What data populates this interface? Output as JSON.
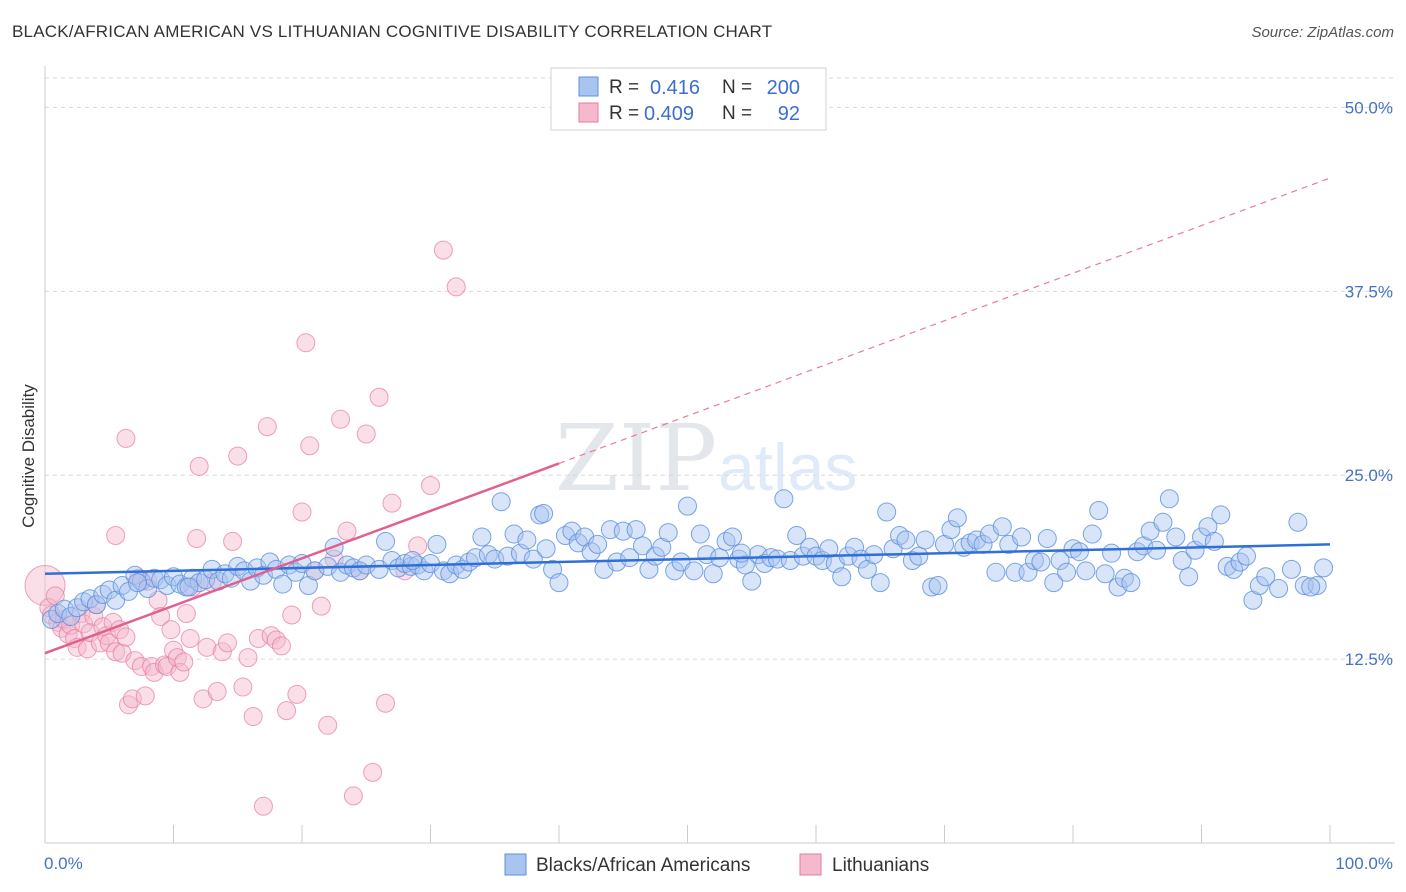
{
  "title": "BLACK/AFRICAN AMERICAN VS LITHUANIAN COGNITIVE DISABILITY CORRELATION CHART",
  "source": "Source: ZipAtlas.com",
  "watermark": {
    "zip": "ZIP",
    "atlas": "atlas"
  },
  "colors": {
    "blue": "#5b8fde",
    "blue_fill": "#a9c4ef",
    "pink": "#e77aa0",
    "pink_fill": "#f5b9cd",
    "axis_text": "#4472c4"
  },
  "legend": {
    "rows": [
      {
        "r_label": "R =",
        "r_value": "0.416",
        "n_label": "N =",
        "n_value": "200"
      },
      {
        "r_label": "R =",
        "r_value": "0.409",
        "n_label": "N =",
        "n_value": "92"
      }
    ]
  },
  "bottom_legend": [
    "Blacks/African Americans",
    "Lithuanians"
  ],
  "chart_data": {
    "type": "scatter",
    "title": "BLACK/AFRICAN AMERICAN VS LITHUANIAN COGNITIVE DISABILITY CORRELATION CHART",
    "xlabel": "",
    "ylabel": "Cognitive Disability",
    "xlim": [
      0,
      100
    ],
    "ylim": [
      0,
      52
    ],
    "x_tick_labels": [
      "0.0%",
      "100.0%"
    ],
    "y_ticks": [
      12.5,
      25.0,
      37.5,
      50.0
    ],
    "y_tick_labels": [
      "12.5%",
      "25.0%",
      "37.5%",
      "50.0%"
    ],
    "series": [
      {
        "name": "Blacks/African Americans",
        "r": 0.416,
        "n": 200,
        "trend": {
          "x": [
            0,
            100
          ],
          "y": [
            18.3,
            20.3
          ]
        },
        "points": [
          [
            0.5,
            15.2
          ],
          [
            1,
            15.6
          ],
          [
            1.5,
            15.9
          ],
          [
            2,
            15.4
          ],
          [
            2.5,
            16.0
          ],
          [
            3,
            16.4
          ],
          [
            3.5,
            16.6
          ],
          [
            4,
            16.2
          ],
          [
            4.5,
            16.9
          ],
          [
            5,
            17.2
          ],
          [
            5.5,
            16.5
          ],
          [
            6,
            17.5
          ],
          [
            6.5,
            17.1
          ],
          [
            7,
            18.2
          ],
          [
            7.5,
            17.8
          ],
          [
            8,
            17.3
          ],
          [
            8.5,
            18.0
          ],
          [
            9,
            17.9
          ],
          [
            9.5,
            17.5
          ],
          [
            10,
            18.1
          ],
          [
            10.5,
            17.6
          ],
          [
            11,
            17.4
          ],
          [
            11.5,
            18.0
          ],
          [
            12,
            17.7
          ],
          [
            12.5,
            17.9
          ],
          [
            13,
            18.6
          ],
          [
            13.5,
            17.8
          ],
          [
            14,
            18.3
          ],
          [
            14.5,
            18.0
          ],
          [
            15,
            18.8
          ],
          [
            15.5,
            18.5
          ],
          [
            16,
            17.8
          ],
          [
            16.5,
            18.7
          ],
          [
            17,
            18.2
          ],
          [
            17.5,
            19.1
          ],
          [
            18,
            18.6
          ],
          [
            18.5,
            17.6
          ],
          [
            19,
            18.9
          ],
          [
            19.5,
            18.4
          ],
          [
            20,
            19.0
          ],
          [
            20.5,
            17.5
          ],
          [
            21,
            18.5
          ],
          [
            22,
            18.8
          ],
          [
            22.5,
            20.1
          ],
          [
            23,
            18.4
          ],
          [
            23.5,
            18.9
          ],
          [
            24,
            18.7
          ],
          [
            24.5,
            18.5
          ],
          [
            25,
            18.9
          ],
          [
            26,
            18.6
          ],
          [
            26.5,
            20.5
          ],
          [
            27,
            19.2
          ],
          [
            27.5,
            18.7
          ],
          [
            28,
            19.0
          ],
          [
            28.5,
            18.8
          ],
          [
            29,
            18.9
          ],
          [
            29.5,
            18.5
          ],
          [
            30,
            19.0
          ],
          [
            30.5,
            20.3
          ],
          [
            31,
            18.5
          ],
          [
            31.5,
            18.3
          ],
          [
            32,
            18.9
          ],
          [
            32.5,
            18.6
          ],
          [
            33,
            19.1
          ],
          [
            33.5,
            19.4
          ],
          [
            34,
            20.8
          ],
          [
            34.5,
            19.6
          ],
          [
            35,
            19.3
          ],
          [
            35.5,
            23.2
          ],
          [
            36,
            19.5
          ],
          [
            36.5,
            21.0
          ],
          [
            37,
            19.7
          ],
          [
            37.5,
            20.6
          ],
          [
            38,
            19.3
          ],
          [
            38.5,
            22.3
          ],
          [
            39,
            20.0
          ],
          [
            39.5,
            18.6
          ],
          [
            40,
            17.7
          ],
          [
            40.5,
            20.9
          ],
          [
            41,
            21.2
          ],
          [
            41.5,
            20.4
          ],
          [
            42,
            20.8
          ],
          [
            42.5,
            19.8
          ],
          [
            43,
            20.3
          ],
          [
            43.5,
            18.6
          ],
          [
            44,
            21.3
          ],
          [
            44.5,
            19.1
          ],
          [
            45,
            21.2
          ],
          [
            45.5,
            19.4
          ],
          [
            46,
            21.3
          ],
          [
            46.5,
            20.2
          ],
          [
            47,
            18.6
          ],
          [
            47.5,
            19.5
          ],
          [
            48,
            20.1
          ],
          [
            48.5,
            21.1
          ],
          [
            49,
            18.5
          ],
          [
            49.5,
            19.1
          ],
          [
            50,
            22.9
          ],
          [
            50.5,
            18.5
          ],
          [
            51,
            21.0
          ],
          [
            51.5,
            19.6
          ],
          [
            52,
            18.3
          ],
          [
            52.5,
            19.4
          ],
          [
            53,
            20.5
          ],
          [
            53.5,
            20.8
          ],
          [
            54,
            19.3
          ],
          [
            54.5,
            18.9
          ],
          [
            55,
            17.8
          ],
          [
            55.5,
            19.6
          ],
          [
            56,
            19.0
          ],
          [
            56.5,
            19.4
          ],
          [
            57,
            19.3
          ],
          [
            57.5,
            23.4
          ],
          [
            58,
            19.2
          ],
          [
            58.5,
            20.9
          ],
          [
            59,
            19.5
          ],
          [
            59.5,
            20.1
          ],
          [
            60,
            19.5
          ],
          [
            60.5,
            19.2
          ],
          [
            61,
            20.0
          ],
          [
            61.5,
            19.0
          ],
          [
            62,
            18.1
          ],
          [
            62.5,
            19.5
          ],
          [
            63,
            20.1
          ],
          [
            63.5,
            19.3
          ],
          [
            64,
            18.6
          ],
          [
            64.5,
            19.6
          ],
          [
            65,
            17.7
          ],
          [
            65.5,
            22.5
          ],
          [
            66,
            20.0
          ],
          [
            66.5,
            20.9
          ],
          [
            67,
            20.6
          ],
          [
            67.5,
            19.2
          ],
          [
            68,
            19.5
          ],
          [
            68.5,
            20.6
          ],
          [
            69,
            17.4
          ],
          [
            69.5,
            17.5
          ],
          [
            70,
            20.3
          ],
          [
            70.5,
            21.3
          ],
          [
            71,
            22.1
          ],
          [
            71.5,
            20.1
          ],
          [
            72,
            20.4
          ],
          [
            72.5,
            20.6
          ],
          [
            73,
            20.3
          ],
          [
            73.5,
            21.0
          ],
          [
            74,
            18.4
          ],
          [
            74.5,
            21.5
          ],
          [
            75,
            20.3
          ],
          [
            75.5,
            18.4
          ],
          [
            76,
            20.8
          ],
          [
            76.5,
            18.4
          ],
          [
            77,
            19.2
          ],
          [
            77.5,
            19.1
          ],
          [
            78,
            20.7
          ],
          [
            78.5,
            17.7
          ],
          [
            79,
            19.2
          ],
          [
            79.5,
            18.4
          ],
          [
            80,
            20.0
          ],
          [
            80.5,
            19.8
          ],
          [
            81,
            18.5
          ],
          [
            81.5,
            21.0
          ],
          [
            82,
            22.6
          ],
          [
            82.5,
            18.3
          ],
          [
            83,
            19.7
          ],
          [
            83.5,
            17.4
          ],
          [
            84,
            18.0
          ],
          [
            84.5,
            17.7
          ],
          [
            85,
            19.8
          ],
          [
            85.5,
            20.2
          ],
          [
            86,
            21.2
          ],
          [
            86.5,
            19.9
          ],
          [
            87,
            21.8
          ],
          [
            87.5,
            23.4
          ],
          [
            88,
            20.8
          ],
          [
            88.5,
            19.2
          ],
          [
            89,
            18.1
          ],
          [
            89.5,
            19.9
          ],
          [
            90,
            20.8
          ],
          [
            90.5,
            21.5
          ],
          [
            91,
            20.5
          ],
          [
            91.5,
            22.3
          ],
          [
            92,
            18.8
          ],
          [
            92.5,
            18.6
          ],
          [
            93,
            19.1
          ],
          [
            93.5,
            19.5
          ],
          [
            94,
            16.5
          ],
          [
            94.5,
            17.5
          ],
          [
            95,
            18.1
          ],
          [
            96,
            17.3
          ],
          [
            97,
            18.6
          ],
          [
            97.5,
            21.8
          ],
          [
            98,
            17.5
          ],
          [
            99,
            17.5
          ],
          [
            99.5,
            18.7
          ],
          [
            98.5,
            17.4
          ],
          [
            38.8,
            22.4
          ],
          [
            11.2,
            17.4
          ],
          [
            7.2,
            17.7
          ],
          [
            28.6,
            19.2
          ],
          [
            54.2,
            19.7
          ]
        ]
      },
      {
        "name": "Lithuanians",
        "r": 0.409,
        "n": 92,
        "trend": {
          "x": [
            0,
            40
          ],
          "y": [
            12.9,
            25.8
          ]
        },
        "trend_ext": {
          "x": [
            40,
            100
          ],
          "y": [
            25.8,
            45.2
          ]
        },
        "points": [
          [
            0,
            17.5
          ],
          [
            0.3,
            16.0
          ],
          [
            0.5,
            15.5
          ],
          [
            0.8,
            16.8
          ],
          [
            1,
            15.0
          ],
          [
            1.3,
            14.6
          ],
          [
            1.5,
            15.2
          ],
          [
            1.8,
            14.2
          ],
          [
            2,
            14.8
          ],
          [
            2.3,
            13.9
          ],
          [
            2.5,
            13.3
          ],
          [
            2.8,
            15.6
          ],
          [
            3,
            14.9
          ],
          [
            3.3,
            13.2
          ],
          [
            3.5,
            14.3
          ],
          [
            3.8,
            15.4
          ],
          [
            4,
            16.2
          ],
          [
            4.3,
            13.6
          ],
          [
            4.5,
            14.7
          ],
          [
            4.8,
            14.1
          ],
          [
            5,
            13.6
          ],
          [
            5.3,
            15.0
          ],
          [
            5.5,
            13.0
          ],
          [
            5.8,
            14.5
          ],
          [
            6,
            12.9
          ],
          [
            6.3,
            14.0
          ],
          [
            6.5,
            9.4
          ],
          [
            6.8,
            9.8
          ],
          [
            7,
            12.4
          ],
          [
            7.3,
            18.0
          ],
          [
            7.5,
            12.0
          ],
          [
            7.8,
            10.0
          ],
          [
            8,
            17.8
          ],
          [
            8.3,
            12.0
          ],
          [
            8.5,
            11.6
          ],
          [
            8.8,
            16.5
          ],
          [
            9,
            15.4
          ],
          [
            9.3,
            12.1
          ],
          [
            9.5,
            12.0
          ],
          [
            9.8,
            14.5
          ],
          [
            10,
            13.1
          ],
          [
            10.3,
            12.6
          ],
          [
            10.5,
            11.6
          ],
          [
            10.8,
            12.3
          ],
          [
            11,
            15.6
          ],
          [
            11.3,
            13.9
          ],
          [
            11.5,
            17.4
          ],
          [
            11.8,
            20.7
          ],
          [
            12,
            25.6
          ],
          [
            12.3,
            9.8
          ],
          [
            12.6,
            13.3
          ],
          [
            13,
            17.7
          ],
          [
            13.4,
            10.3
          ],
          [
            13.8,
            13.0
          ],
          [
            14.2,
            13.6
          ],
          [
            14.6,
            20.5
          ],
          [
            15,
            26.3
          ],
          [
            15.4,
            10.6
          ],
          [
            15.8,
            12.6
          ],
          [
            16.2,
            8.6
          ],
          [
            16.6,
            13.9
          ],
          [
            17,
            2.5
          ],
          [
            17.3,
            28.3
          ],
          [
            17.6,
            14.1
          ],
          [
            18,
            13.8
          ],
          [
            18.4,
            13.4
          ],
          [
            18.8,
            9.0
          ],
          [
            19.2,
            15.5
          ],
          [
            19.6,
            10.1
          ],
          [
            20,
            22.5
          ],
          [
            20.3,
            34.0
          ],
          [
            20.6,
            27.0
          ],
          [
            21,
            18.5
          ],
          [
            21.5,
            16.1
          ],
          [
            22,
            8.0
          ],
          [
            22.5,
            19.3
          ],
          [
            23,
            28.8
          ],
          [
            23.5,
            21.2
          ],
          [
            24,
            3.2
          ],
          [
            24.5,
            18.5
          ],
          [
            25,
            27.8
          ],
          [
            25.5,
            4.8
          ],
          [
            26,
            30.3
          ],
          [
            26.5,
            9.5
          ],
          [
            27,
            23.1
          ],
          [
            28,
            18.5
          ],
          [
            29,
            20.2
          ],
          [
            30,
            24.3
          ],
          [
            31,
            40.3
          ],
          [
            32,
            37.8
          ],
          [
            5.5,
            20.9
          ],
          [
            6.3,
            27.5
          ]
        ]
      }
    ]
  }
}
